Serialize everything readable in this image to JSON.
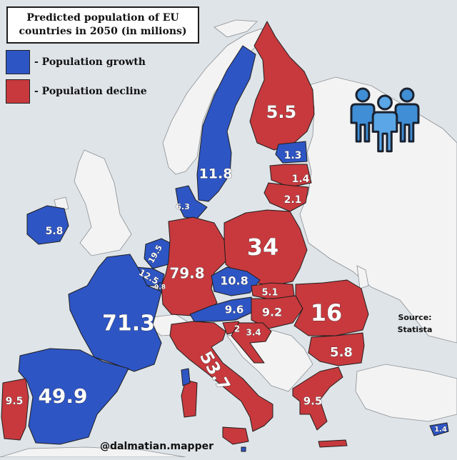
{
  "title": {
    "line1": "Predicted population of EU",
    "line2": "countries in 2050 (in milions)"
  },
  "legend": [
    {
      "label": "- Population growth",
      "color": "#2e55c4"
    },
    {
      "label": "- Population decline",
      "color": "#c7393d"
    }
  ],
  "source": {
    "line1": "Source:",
    "line2": "Statista"
  },
  "credit": "@dalmatian.mapper",
  "colors": {
    "growth": "#2e55c4",
    "decline": "#c7393d",
    "non_eu_land": "#f3f3f3",
    "sea": "#dfe4e8",
    "border": "#1f1f1f"
  },
  "icon": "people-group-icon",
  "countries": [
    {
      "id": "finland",
      "status": "decline",
      "value": "5.5"
    },
    {
      "id": "sweden",
      "status": "growth",
      "value": "11.8"
    },
    {
      "id": "estonia",
      "status": "growth",
      "value": "1.3"
    },
    {
      "id": "latvia",
      "status": "decline",
      "value": "1.4"
    },
    {
      "id": "lithuania",
      "status": "decline",
      "value": "2.1"
    },
    {
      "id": "denmark",
      "status": "growth",
      "value": "6.3"
    },
    {
      "id": "ireland",
      "status": "growth",
      "value": "5.8"
    },
    {
      "id": "netherlands",
      "status": "growth",
      "value": "19.5"
    },
    {
      "id": "belgium",
      "status": "growth",
      "value": "12.5"
    },
    {
      "id": "luxembourg",
      "status": "growth",
      "value": "0.8"
    },
    {
      "id": "germany",
      "status": "decline",
      "value": "79.8"
    },
    {
      "id": "poland",
      "status": "decline",
      "value": "34"
    },
    {
      "id": "czechia",
      "status": "growth",
      "value": "10.8"
    },
    {
      "id": "slovakia",
      "status": "decline",
      "value": "5.1"
    },
    {
      "id": "austria",
      "status": "growth",
      "value": "9.6"
    },
    {
      "id": "hungary",
      "status": "decline",
      "value": "9.2"
    },
    {
      "id": "france",
      "status": "growth",
      "value": "71.3"
    },
    {
      "id": "romania",
      "status": "decline",
      "value": "16"
    },
    {
      "id": "bulgaria",
      "status": "decline",
      "value": "5.8"
    },
    {
      "id": "slovenia",
      "status": "decline",
      "value": "2"
    },
    {
      "id": "croatia",
      "status": "decline",
      "value": "3.4"
    },
    {
      "id": "italy",
      "status": "decline",
      "value": "53.7"
    },
    {
      "id": "spain",
      "status": "growth",
      "value": "49.9"
    },
    {
      "id": "portugal",
      "status": "decline",
      "value": "9.5"
    },
    {
      "id": "greece",
      "status": "decline",
      "value": "9.5"
    },
    {
      "id": "cyprus",
      "status": "growth",
      "value": "1.4"
    },
    {
      "id": "malta",
      "status": "growth",
      "value": ""
    }
  ]
}
